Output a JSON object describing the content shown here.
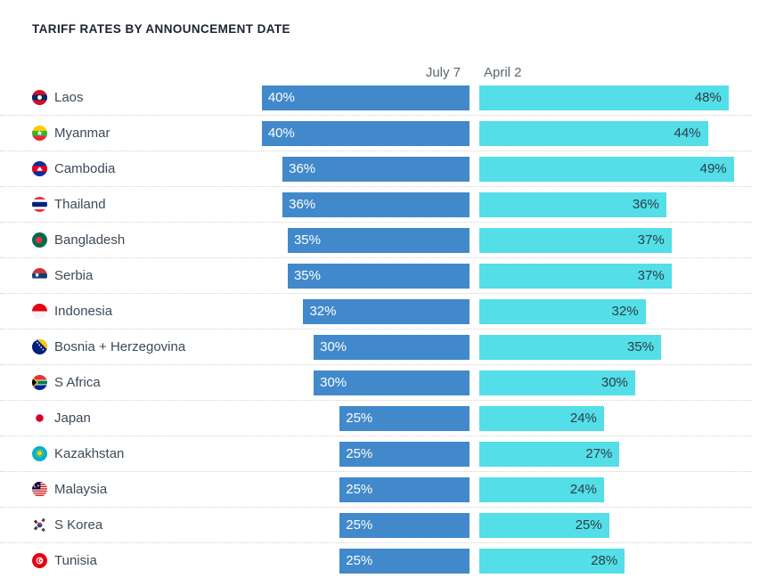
{
  "title": "TARIFF RATES BY ANNOUNCEMENT DATE",
  "chart_data": {
    "type": "bar",
    "orientation": "horizontal",
    "unit": "%",
    "title": "TARIFF RATES BY ANNOUNCEMENT DATE",
    "series_labels": [
      "July 7",
      "April 2"
    ],
    "colors": {
      "july7_bar": "#4189ca",
      "april2_bar": "#53dee8",
      "label_on_blue": "#ffffff",
      "label_on_cyan": "#2e3d44"
    },
    "value_range": [
      0,
      49
    ],
    "grid": "dotted row separators",
    "legend_position": "column headers above bars",
    "categories": [
      "Laos",
      "Myanmar",
      "Cambodia",
      "Thailand",
      "Bangladesh",
      "Serbia",
      "Indonesia",
      "Bosnia + Herzegovina",
      "S Africa",
      "Japan",
      "Kazakhstan",
      "Malaysia",
      "S Korea",
      "Tunisia"
    ],
    "series": [
      {
        "name": "July 7",
        "values": [
          40,
          40,
          36,
          36,
          35,
          35,
          32,
          30,
          30,
          25,
          25,
          25,
          25,
          25
        ]
      },
      {
        "name": "April 2",
        "values": [
          48,
          44,
          49,
          36,
          37,
          37,
          32,
          35,
          30,
          24,
          27,
          24,
          25,
          28
        ]
      }
    ],
    "rows": [
      {
        "country": "Laos",
        "flag": "laos",
        "july7": 40,
        "april2": 48
      },
      {
        "country": "Myanmar",
        "flag": "myanmar",
        "july7": 40,
        "april2": 44
      },
      {
        "country": "Cambodia",
        "flag": "cambodia",
        "july7": 36,
        "april2": 49
      },
      {
        "country": "Thailand",
        "flag": "thailand",
        "july7": 36,
        "april2": 36
      },
      {
        "country": "Bangladesh",
        "flag": "bangladesh",
        "july7": 35,
        "april2": 37
      },
      {
        "country": "Serbia",
        "flag": "serbia",
        "july7": 35,
        "april2": 37
      },
      {
        "country": "Indonesia",
        "flag": "indonesia",
        "july7": 32,
        "april2": 32
      },
      {
        "country": "Bosnia + Herzegovina",
        "flag": "bosnia",
        "july7": 30,
        "april2": 35
      },
      {
        "country": "S Africa",
        "flag": "s-africa",
        "july7": 30,
        "april2": 30
      },
      {
        "country": "Japan",
        "flag": "japan",
        "july7": 25,
        "april2": 24
      },
      {
        "country": "Kazakhstan",
        "flag": "kazakhstan",
        "july7": 25,
        "april2": 27
      },
      {
        "country": "Malaysia",
        "flag": "malaysia",
        "july7": 25,
        "april2": 24
      },
      {
        "country": "S Korea",
        "flag": "s-korea",
        "july7": 25,
        "april2": 25
      },
      {
        "country": "Tunisia",
        "flag": "tunisia",
        "july7": 25,
        "april2": 28
      }
    ]
  }
}
